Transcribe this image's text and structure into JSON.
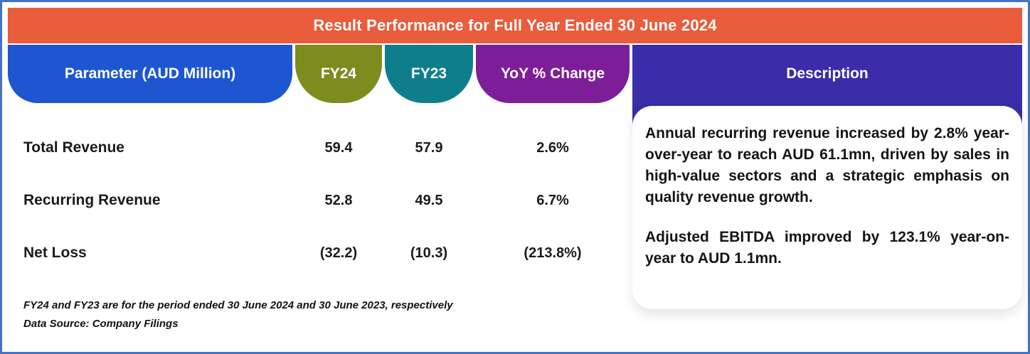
{
  "banner": {
    "title": "Result Performance for Full Year Ended 30 June 2024"
  },
  "table": {
    "columns": {
      "parameter": "Parameter (AUD Million)",
      "fy24": "FY24",
      "fy23": "FY23",
      "yoy": "YoY % Change",
      "description": "Description"
    },
    "rows": [
      {
        "parameter": "Total Revenue",
        "fy24": "59.4",
        "fy23": "57.9",
        "yoy": "2.6%"
      },
      {
        "parameter": "Recurring Revenue",
        "fy24": "52.8",
        "fy23": "49.5",
        "yoy": "6.7%"
      },
      {
        "parameter": "Net Loss",
        "fy24": "(32.2)",
        "fy23": "(10.3)",
        "yoy": "(213.8%)"
      }
    ]
  },
  "description": {
    "paragraph1": "Annual recurring revenue increased by 2.8% year-over-year to reach AUD 61.1mn, driven by sales in high-value sectors and a strategic emphasis on quality revenue growth.",
    "paragraph2": "Adjusted EBITDA improved by 123.1% year-on-year to AUD 1.1mn."
  },
  "footnotes": {
    "line1": "FY24 and FY23 are for the period ended 30 June 2024 and 30 June 2023, respectively",
    "line2": "Data Source: Company Filings"
  },
  "colors": {
    "banner": "#e95c3c",
    "parameter_header": "#1e56d2",
    "fy24_header": "#7d8b1f",
    "fy23_header": "#0f7e8c",
    "yoy_header": "#7d1e98",
    "description_header": "#3a2da9",
    "border": "#4472c4"
  },
  "chart_data": {
    "type": "table",
    "title": "Result Performance for Full Year Ended 30 June 2024",
    "columns": [
      "Parameter (AUD Million)",
      "FY24",
      "FY23",
      "YoY % Change"
    ],
    "rows": [
      [
        "Total Revenue",
        59.4,
        57.9,
        "2.6%"
      ],
      [
        "Recurring Revenue",
        52.8,
        49.5,
        "6.7%"
      ],
      [
        "Net Loss",
        -32.2,
        -10.3,
        "-213.8%"
      ]
    ],
    "notes": [
      "FY24 and FY23 are for the period ended 30 June 2024 and 30 June 2023, respectively",
      "Data Source: Company Filings"
    ]
  }
}
